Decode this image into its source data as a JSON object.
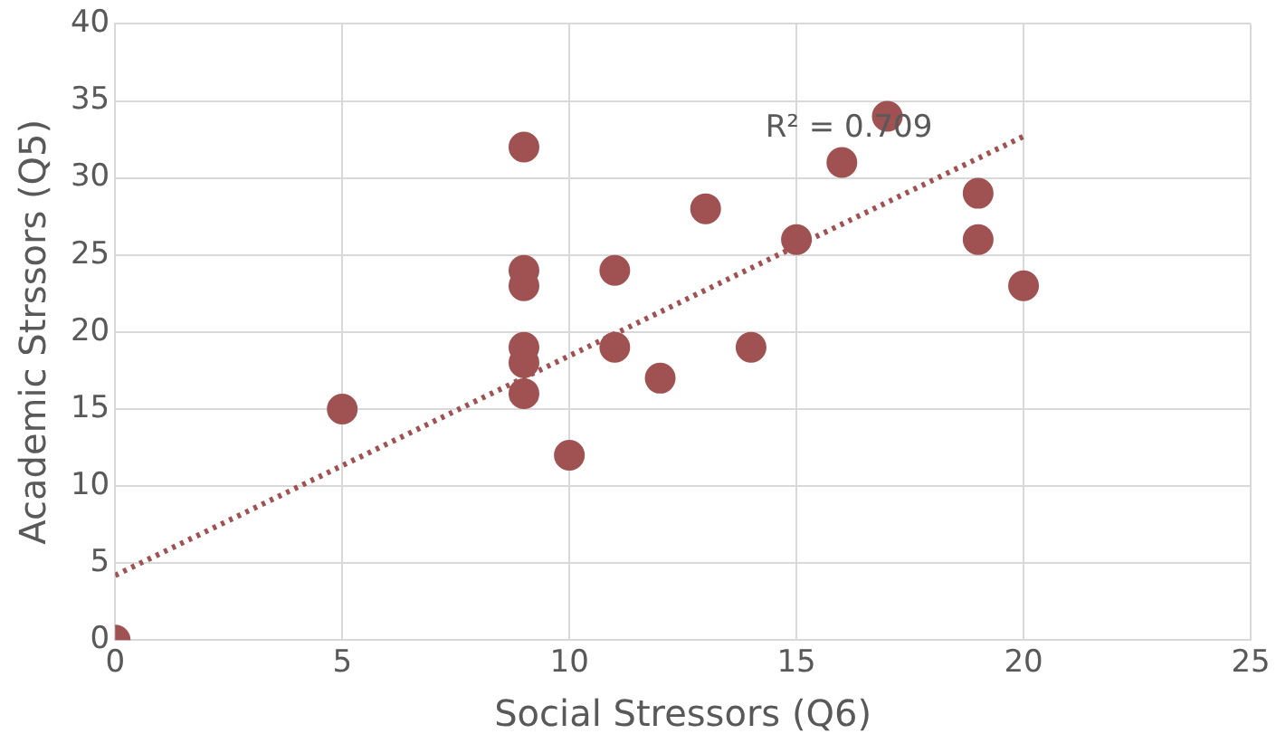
{
  "chart_data": {
    "type": "scatter",
    "xlabel": "Social Stressors (Q6)",
    "ylabel": "Academic Strssors (Q5)",
    "series": [
      {
        "color": "#a05252",
        "marker": "circle",
        "x": [
          0,
          5,
          9,
          9,
          9,
          9,
          9,
          9,
          10,
          11,
          11,
          12,
          13,
          14,
          15,
          16,
          17,
          19,
          19,
          20
        ],
        "values": [
          0,
          15,
          32,
          24,
          23,
          19,
          18,
          16,
          12,
          24,
          19,
          17,
          28,
          19,
          26,
          31,
          34,
          29,
          26,
          23
        ]
      },
      {
        "type": "line",
        "color": "#a05252",
        "line_style": "dotted",
        "x": [
          0,
          20
        ],
        "values": [
          4.2,
          32.7
        ]
      }
    ],
    "annotations": [
      "R² = 0.709"
    ],
    "xlim": [
      0,
      25
    ],
    "xticks": [
      0,
      5,
      10,
      15,
      20,
      25
    ],
    "ylim": [
      0,
      40
    ],
    "yticks": [
      0,
      5,
      10,
      15,
      20,
      25,
      30,
      35,
      40
    ],
    "grid": true,
    "legend": false
  }
}
